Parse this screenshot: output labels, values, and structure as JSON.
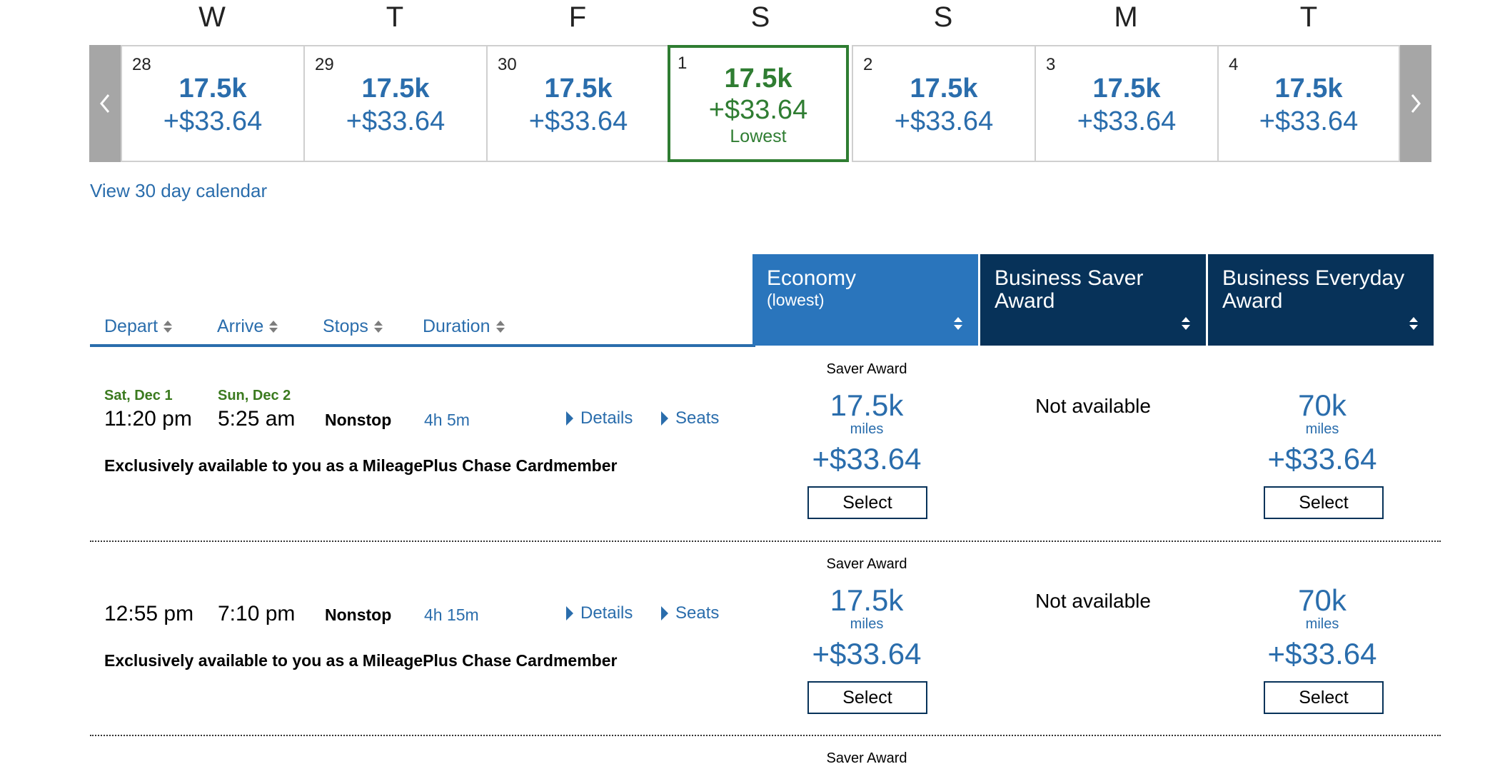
{
  "calendar": {
    "days": [
      {
        "dow": "W",
        "num": "28",
        "miles": "17.5k",
        "price": "+$33.64"
      },
      {
        "dow": "T",
        "num": "29",
        "miles": "17.5k",
        "price": "+$33.64"
      },
      {
        "dow": "F",
        "num": "30",
        "miles": "17.5k",
        "price": "+$33.64"
      },
      {
        "dow": "S",
        "num": "1",
        "miles": "17.5k",
        "price": "+$33.64",
        "note": "Lowest"
      },
      {
        "dow": "S",
        "num": "2",
        "miles": "17.5k",
        "price": "+$33.64"
      },
      {
        "dow": "M",
        "num": "3",
        "miles": "17.5k",
        "price": "+$33.64"
      },
      {
        "dow": "T",
        "num": "4",
        "miles": "17.5k",
        "price": "+$33.64"
      }
    ],
    "prev_icon": "chevron-left-icon",
    "next_icon": "chevron-right-icon",
    "view_calendar_link": "View 30 day calendar",
    "selected_color": "#2f7d32"
  },
  "sort": {
    "depart": "Depart",
    "arrive": "Arrive",
    "stops": "Stops",
    "duration": "Duration"
  },
  "fare_columns": {
    "economy": {
      "title": "Economy",
      "sub": "(lowest)"
    },
    "business_saver": {
      "title": "Business Saver",
      "title2": "Award"
    },
    "business_everyday": {
      "title": "Business Everyday",
      "title2": "Award"
    }
  },
  "flights": [
    {
      "depart_date": "Sat, Dec 1",
      "arrive_date": "Sun, Dec 2",
      "depart_time": "11:20 pm",
      "arrive_time": "5:25 am",
      "stops": "Nonstop",
      "duration": "4h 5m",
      "details": "Details",
      "seats": "Seats",
      "note": "Exclusively available to you as a MileagePlus Chase Cardmember",
      "economy": {
        "label": "Saver Award",
        "miles": "17.5k",
        "unit": "miles",
        "price": "+$33.64",
        "button": "Select"
      },
      "business_saver": {
        "status": "Not available"
      },
      "business_everyday": {
        "miles": "70k",
        "unit": "miles",
        "price": "+$33.64",
        "button": "Select"
      }
    },
    {
      "depart_time": "12:55 pm",
      "arrive_time": "7:10 pm",
      "stops": "Nonstop",
      "duration": "4h 15m",
      "details": "Details",
      "seats": "Seats",
      "note": "Exclusively available to you as a MileagePlus Chase Cardmember",
      "economy": {
        "label": "Saver Award",
        "miles": "17.5k",
        "unit": "miles",
        "price": "+$33.64",
        "button": "Select"
      },
      "business_saver": {
        "status": "Not available"
      },
      "business_everyday": {
        "miles": "70k",
        "unit": "miles",
        "price": "+$33.64",
        "button": "Select"
      }
    },
    {
      "economy": {
        "label": "Saver Award"
      }
    }
  ],
  "colors": {
    "link_blue": "#2a6dac",
    "economy_header": "#2a75bc",
    "business_header": "#073259",
    "date_green": "#3b7a1f"
  }
}
